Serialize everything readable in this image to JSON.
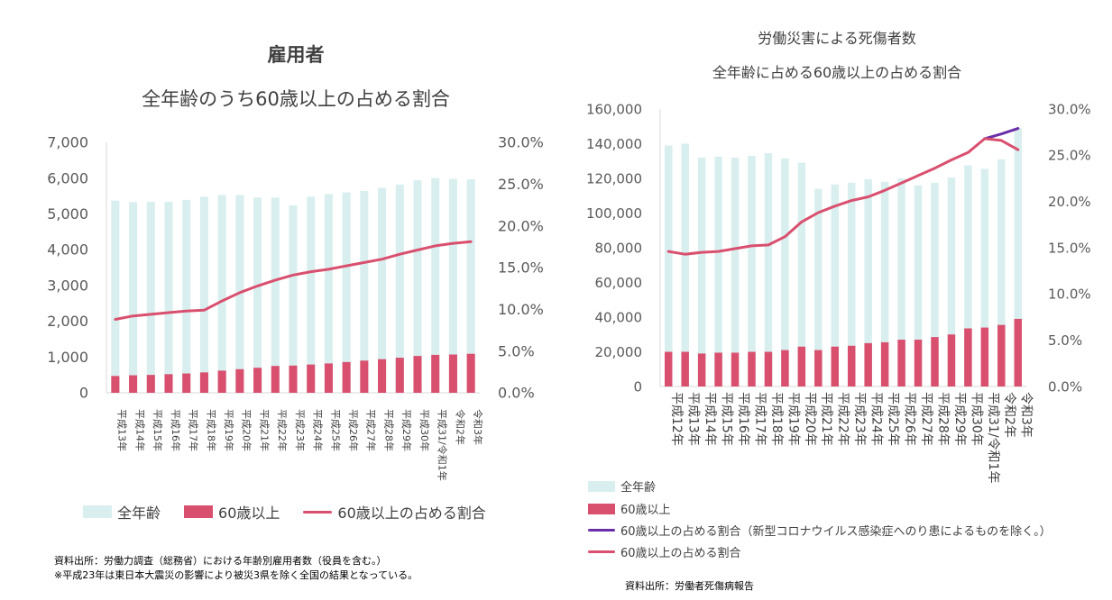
{
  "colors": {
    "total_bar": "#d9efef",
    "older_bar": "#d9506f",
    "ratio_line": "#d9506f",
    "ratio_excl_line": "#6a2fa8",
    "axis_text": "#595959"
  },
  "left": {
    "title": "雇用者",
    "subtitle": "全年齢のうち60歳以上の占める割合",
    "legend": {
      "total": "全年齢",
      "older": "60歳以上",
      "ratio": "60歳以上の占める割合"
    },
    "notes": [
      "資料出所：労働力調査（総務省）における年齢別雇用者数（役員を含む。）",
      "※平成23年は東日本大震災の影響により被災3県を除く全国の結果となっている。"
    ]
  },
  "right": {
    "title": "労働災害による死傷者数",
    "subtitle": "全年齢に占める60歳以上の占める割合",
    "legend": {
      "total": "全年齢",
      "older": "60歳以上",
      "ratio_excl": "60歳以上の占める割合（新型コロナウイルス感染症へのり患によるものを除く。）",
      "ratio": "60歳以上の占める割合"
    },
    "note": "資料出所：労働者死傷病報告"
  },
  "chart_data": [
    {
      "type": "bar",
      "title": "雇用者",
      "subtitle": "全年齢のうち60歳以上の占める割合",
      "categories": [
        "平成13年",
        "平成14年",
        "平成15年",
        "平成16年",
        "平成17年",
        "平成18年",
        "平成19年",
        "平成20年",
        "平成21年",
        "平成22年",
        "平成23年",
        "平成24年",
        "平成25年",
        "平成26年",
        "平成27年",
        "平成28年",
        "平成29年",
        "平成30年",
        "平成31/令和1年",
        "令和2年",
        "令和3年"
      ],
      "series": [
        {
          "name": "全年齢",
          "type": "bar",
          "axis": "left",
          "values": [
            5370,
            5330,
            5340,
            5340,
            5390,
            5480,
            5530,
            5530,
            5460,
            5460,
            5240,
            5480,
            5550,
            5600,
            5640,
            5730,
            5820,
            5940,
            6000,
            5980,
            5970
          ]
        },
        {
          "name": "60歳以上",
          "type": "bar",
          "axis": "left",
          "values": [
            470,
            490,
            500,
            520,
            540,
            570,
            620,
            660,
            700,
            750,
            760,
            790,
            820,
            860,
            900,
            940,
            980,
            1030,
            1060,
            1070,
            1090
          ]
        },
        {
          "name": "60歳以上の占める割合",
          "type": "line",
          "axis": "right",
          "values": [
            8.8,
            9.2,
            9.4,
            9.6,
            9.8,
            9.9,
            11.0,
            12.0,
            12.8,
            13.5,
            14.1,
            14.5,
            14.8,
            15.2,
            15.6,
            16.0,
            16.6,
            17.1,
            17.6,
            17.9,
            18.1
          ]
        }
      ],
      "ylim": [
        0,
        7000
      ],
      "yticks": [
        "0",
        "1,000",
        "2,000",
        "3,000",
        "4,000",
        "5,000",
        "6,000",
        "7,000"
      ],
      "y2lim": [
        0,
        30
      ],
      "y2ticks": [
        "0.0%",
        "5.0%",
        "10.0%",
        "15.0%",
        "20.0%",
        "25.0%",
        "30.0%"
      ],
      "legend_position": "bottom"
    },
    {
      "type": "bar",
      "title": "労働災害による死傷者数",
      "subtitle": "全年齢に占める60歳以上の占める割合",
      "categories": [
        "平成12年",
        "平成13年",
        "平成14年",
        "平成15年",
        "平成16年",
        "平成17年",
        "平成18年",
        "平成19年",
        "平成20年",
        "平成21年",
        "平成22年",
        "平成23年",
        "平成24年",
        "平成25年",
        "平成26年",
        "平成27年",
        "平成28年",
        "平成29年",
        "平成30年",
        "平成31/令和1年",
        "令和2年",
        "令和3年"
      ],
      "series": [
        {
          "name": "全年齢",
          "type": "bar",
          "axis": "left",
          "values": [
            139000,
            140000,
            132000,
            132500,
            132000,
            133000,
            134500,
            131500,
            129000,
            114000,
            116500,
            117500,
            119500,
            118000,
            120000,
            116000,
            117500,
            120500,
            127500,
            125500,
            131000,
            149000
          ]
        },
        {
          "name": "60歳以上",
          "type": "bar",
          "axis": "left",
          "values": [
            20000,
            20000,
            19000,
            19500,
            19500,
            20000,
            20000,
            21000,
            23000,
            21000,
            23000,
            23500,
            25000,
            25500,
            27000,
            27000,
            28500,
            30000,
            33500,
            34000,
            35500,
            39000
          ]
        },
        {
          "name": "60歳以上の占める割合（新型コロナウイルス感染症へのり患によるものを除く。）",
          "type": "line",
          "axis": "right",
          "values": [
            null,
            null,
            null,
            null,
            null,
            null,
            null,
            null,
            null,
            null,
            null,
            null,
            null,
            null,
            null,
            null,
            null,
            null,
            null,
            26.8,
            27.3,
            27.9
          ]
        },
        {
          "name": "60歳以上の占める割合",
          "type": "line",
          "axis": "right",
          "values": [
            14.6,
            14.3,
            14.5,
            14.6,
            14.9,
            15.2,
            15.3,
            16.2,
            17.8,
            18.8,
            19.5,
            20.1,
            20.5,
            21.2,
            22.0,
            22.8,
            23.6,
            24.5,
            25.3,
            26.8,
            26.6,
            25.6
          ]
        }
      ],
      "ylim": [
        0,
        160000
      ],
      "yticks": [
        "0",
        "20,000",
        "40,000",
        "60,000",
        "80,000",
        "100,000",
        "120,000",
        "140,000",
        "160,000"
      ],
      "y2lim": [
        0,
        30
      ],
      "y2ticks": [
        "0.0%",
        "5.0%",
        "10.0%",
        "15.0%",
        "20.0%",
        "25.0%",
        "30.0%"
      ],
      "legend_position": "bottom"
    }
  ]
}
